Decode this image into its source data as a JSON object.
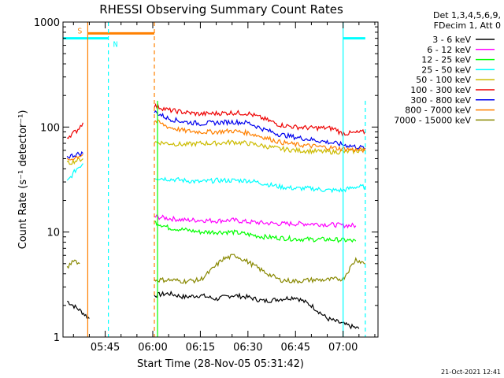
{
  "chart_data": {
    "type": "line",
    "title": "RHESSI Observing Summary Count Rates",
    "xlabel": "Start Time (28-Nov-05 05:31:42)",
    "ylabel": "Count Rate (s⁻¹ detector⁻¹)",
    "x_ticks": [
      "05:45",
      "06:00",
      "06:15",
      "06:30",
      "06:45",
      "07:00"
    ],
    "x_tick_minutes": [
      45,
      60,
      75,
      90,
      105,
      120
    ],
    "xlim_minutes": [
      31.7,
      131.0
    ],
    "yscale": "log",
    "ylim": [
      1,
      1000
    ],
    "y_ticks": [
      "1",
      "10",
      "100",
      "1000"
    ],
    "y_tick_values": [
      1,
      10,
      100,
      1000
    ],
    "legend_header": [
      "Det 1,3,4,5,6,9,",
      "FDecim 1, Att 0"
    ],
    "legend_placement": "right",
    "series": [
      {
        "name": "3 - 6 keV",
        "color": "#000000",
        "segments": [
          [
            [
              33,
              2.2
            ],
            [
              37,
              1.8
            ],
            [
              40,
              1.5
            ]
          ],
          [
            [
              60.5,
              2.5
            ],
            [
              65,
              2.6
            ],
            [
              70,
              2.4
            ],
            [
              75,
              2.5
            ],
            [
              80,
              2.3
            ],
            [
              85,
              2.5
            ],
            [
              90,
              2.4
            ],
            [
              95,
              2.2
            ],
            [
              100,
              2.3
            ],
            [
              105,
              2.4
            ],
            [
              110,
              2.0
            ],
            [
              115,
              1.5
            ],
            [
              118,
              1.4
            ],
            [
              121,
              1.3
            ],
            [
              125,
              1.2
            ]
          ]
        ]
      },
      {
        "name": "6 - 12 keV",
        "color": "#ff00ff",
        "segments": [
          [
            [
              60.5,
              14
            ],
            [
              65,
              13.5
            ],
            [
              70,
              13
            ],
            [
              75,
              13
            ],
            [
              80,
              12.8
            ],
            [
              85,
              13
            ],
            [
              90,
              12.5
            ],
            [
              95,
              12.2
            ],
            [
              100,
              12
            ],
            [
              105,
              12
            ],
            [
              110,
              12
            ],
            [
              115,
              11.8
            ],
            [
              120,
              11.6
            ],
            [
              124,
              11.5
            ]
          ]
        ]
      },
      {
        "name": "12 - 25 keV",
        "color": "#00ff00",
        "segments": [
          [
            [
              60.5,
              12.5
            ],
            [
              65,
              11
            ],
            [
              70,
              10.5
            ],
            [
              75,
              10
            ],
            [
              80,
              10
            ],
            [
              85,
              10
            ],
            [
              90,
              9.5
            ],
            [
              95,
              9
            ],
            [
              100,
              8.8
            ],
            [
              105,
              8.6
            ],
            [
              110,
              8.5
            ],
            [
              115,
              8.5
            ],
            [
              120,
              8.4
            ],
            [
              124,
              8.2
            ]
          ]
        ]
      },
      {
        "name": "25 - 50 keV",
        "color": "#00ffff",
        "segments": [
          [
            [
              33,
              30
            ],
            [
              36,
              40
            ],
            [
              38,
              45
            ]
          ],
          [
            [
              60.5,
              33
            ],
            [
              65,
              32
            ],
            [
              70,
              31
            ],
            [
              75,
              30
            ],
            [
              80,
              31
            ],
            [
              85,
              31
            ],
            [
              90,
              31
            ],
            [
              95,
              29
            ],
            [
              100,
              27
            ],
            [
              105,
              26
            ],
            [
              110,
              26
            ],
            [
              115,
              25
            ],
            [
              120,
              25
            ],
            [
              124,
              27
            ],
            [
              127,
              27
            ]
          ]
        ]
      },
      {
        "name": "50 - 100 keV",
        "color": "#ccbb00",
        "segments": [
          [
            [
              33,
              45
            ],
            [
              36,
              48
            ],
            [
              38,
              50
            ]
          ],
          [
            [
              60.5,
              72
            ],
            [
              65,
              70
            ],
            [
              70,
              68
            ],
            [
              75,
              70
            ],
            [
              80,
              70
            ],
            [
              85,
              72
            ],
            [
              90,
              70
            ],
            [
              95,
              66
            ],
            [
              100,
              62
            ],
            [
              105,
              60
            ],
            [
              110,
              59
            ],
            [
              115,
              58
            ],
            [
              120,
              58
            ],
            [
              127,
              60
            ]
          ]
        ]
      },
      {
        "name": "100 - 300 keV",
        "color": "#ee0000",
        "segments": [
          [
            [
              33,
              80
            ],
            [
              36,
              92
            ],
            [
              38,
              110
            ]
          ],
          [
            [
              60.5,
              160
            ],
            [
              65,
              145
            ],
            [
              70,
              138
            ],
            [
              75,
              133
            ],
            [
              80,
              135
            ],
            [
              85,
              137
            ],
            [
              90,
              135
            ],
            [
              95,
              120
            ],
            [
              100,
              105
            ],
            [
              105,
              100
            ],
            [
              110,
              98
            ],
            [
              115,
              98
            ],
            [
              118,
              95
            ],
            [
              119,
              88
            ],
            [
              121,
              87
            ],
            [
              124,
              88
            ],
            [
              127,
              90
            ]
          ]
        ]
      },
      {
        "name": "300 - 800 keV",
        "color": "#0000ee",
        "segments": [
          [
            [
              33,
              52
            ],
            [
              36,
              55
            ],
            [
              38,
              56
            ]
          ],
          [
            [
              60.5,
              140
            ],
            [
              65,
              120
            ],
            [
              70,
              112
            ],
            [
              75,
              108
            ],
            [
              80,
              110
            ],
            [
              85,
              112
            ],
            [
              90,
              110
            ],
            [
              95,
              95
            ],
            [
              100,
              85
            ],
            [
              105,
              80
            ],
            [
              110,
              76
            ],
            [
              115,
              72
            ],
            [
              120,
              68
            ],
            [
              124,
              65
            ],
            [
              127,
              63
            ]
          ]
        ]
      },
      {
        "name": "800 - 7000 keV",
        "color": "#ff8000",
        "segments": [
          [
            [
              33,
              48
            ],
            [
              36,
              52
            ],
            [
              38,
              55
            ]
          ],
          [
            [
              60.5,
              115
            ],
            [
              65,
              100
            ],
            [
              70,
              92
            ],
            [
              75,
              90
            ],
            [
              80,
              90
            ],
            [
              85,
              92
            ],
            [
              90,
              88
            ],
            [
              95,
              80
            ],
            [
              100,
              72
            ],
            [
              105,
              68
            ],
            [
              110,
              66
            ],
            [
              115,
              64
            ],
            [
              120,
              62
            ],
            [
              127,
              60
            ]
          ]
        ]
      },
      {
        "name": "7000 - 15000 keV",
        "color": "#888800",
        "segments": [
          [
            [
              33,
              4.5
            ],
            [
              35,
              5.5
            ],
            [
              37,
              5
            ]
          ],
          [
            [
              60.5,
              3.5
            ],
            [
              65,
              3.5
            ],
            [
              70,
              3.4
            ],
            [
              75,
              3.5
            ],
            [
              78,
              4.2
            ],
            [
              82,
              5.5
            ],
            [
              86,
              6.0
            ],
            [
              90,
              5.2
            ],
            [
              95,
              4.2
            ],
            [
              100,
              3.5
            ],
            [
              105,
              3.4
            ],
            [
              110,
              3.5
            ],
            [
              115,
              3.5
            ],
            [
              120,
              3.6
            ],
            [
              124,
              5.5
            ],
            [
              127,
              5.0
            ]
          ]
        ]
      }
    ],
    "markers": [
      {
        "label": "S",
        "color": "#ff8000",
        "minute": 39.5,
        "level": 780,
        "end_minute": 60.5,
        "start_style": "solid",
        "end_style": "dashed"
      },
      {
        "label": "N",
        "color": "#00ffff",
        "minute": 46.0,
        "level": 700,
        "end_minute": 120.0,
        "start_style": "dashed",
        "end_style": "solid"
      }
    ],
    "eclipse_bars": [
      {
        "color": "#00ffff",
        "from": 31.7,
        "to": 46.0,
        "level": 700
      },
      {
        "color": "#00ffff",
        "from": 120.0,
        "to": 127.0,
        "level": 700
      }
    ],
    "extra_lines": [
      {
        "color": "#00ff00",
        "minute": 61.5,
        "style": "solid"
      },
      {
        "color": "#00ffff",
        "minute": 127.0,
        "style": "dashed"
      }
    ]
  },
  "footer": "21-Oct-2021 12:41"
}
